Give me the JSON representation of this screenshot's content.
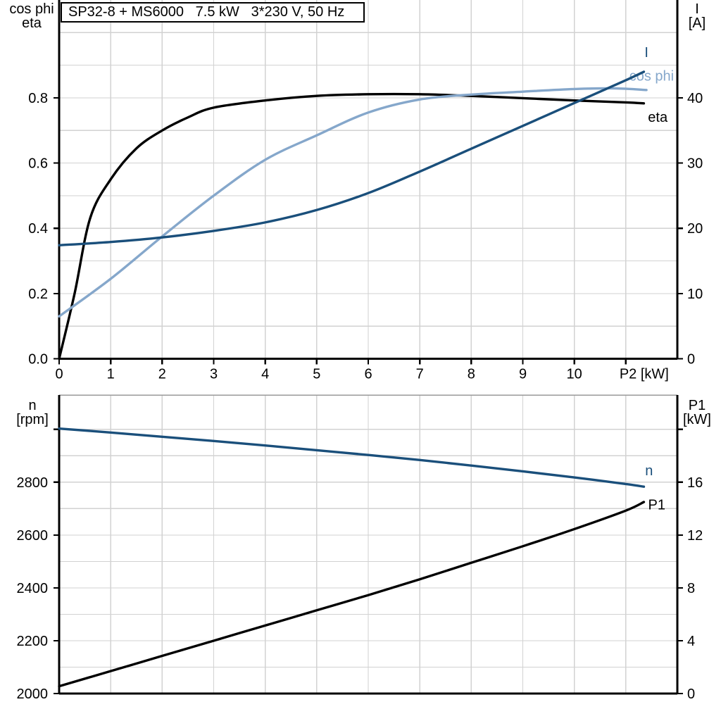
{
  "colors": {
    "black": "#000000",
    "dark_blue": "#1a4f7b",
    "light_blue": "#85a7cb",
    "grid": "#d2d2d2",
    "frame_gray": "#999999",
    "background": "#ffffff"
  },
  "chart_data": [
    {
      "type": "line",
      "name": "motor-electrical-curves",
      "title": "SP32-8 + MS6000   7.5 kW   3*230 V, 50 Hz",
      "x": {
        "label": "P2 [kW]",
        "min": 0,
        "max": 12,
        "ticks": [
          0,
          1,
          2,
          3,
          4,
          5,
          6,
          7,
          8,
          9,
          10
        ],
        "label_tick": 11
      },
      "y_left": {
        "title_lines": [
          "cos phi",
          "eta"
        ],
        "min": 0,
        "max": 1.1,
        "grid_step": 0.1,
        "grid_max": 1.0,
        "tick_values": [
          0,
          0.2,
          0.4,
          0.6,
          0.8
        ],
        "tick_labels": [
          "0.0",
          "0.2",
          "0.4",
          "0.6",
          "0.8"
        ]
      },
      "y_right": {
        "title_lines": [
          "I",
          "[A]"
        ],
        "min": 0,
        "max": 55,
        "tick_values": [
          0,
          10,
          20,
          30,
          40
        ],
        "tick_labels": [
          "0",
          "10",
          "20",
          "30",
          "40"
        ]
      },
      "series": [
        {
          "name": "eta",
          "label": "eta",
          "axis": "left",
          "color_key": "black",
          "label_at": [
            11.62,
            0.742
          ],
          "points": [
            [
              0,
              0
            ],
            [
              0.3,
              0.2
            ],
            [
              0.6,
              0.43
            ],
            [
              1,
              0.55
            ],
            [
              1.5,
              0.645
            ],
            [
              2,
              0.7
            ],
            [
              2.5,
              0.74
            ],
            [
              3,
              0.77
            ],
            [
              4,
              0.792
            ],
            [
              5,
              0.806
            ],
            [
              6,
              0.811
            ],
            [
              7,
              0.811
            ],
            [
              8,
              0.806
            ],
            [
              9,
              0.799
            ],
            [
              10,
              0.792
            ],
            [
              11,
              0.786
            ],
            [
              11.35,
              0.783
            ]
          ]
        },
        {
          "name": "cos_phi",
          "label": "cos phi",
          "axis": "left",
          "color_key": "light_blue",
          "label_at": [
            11.5,
            0.868
          ],
          "points": [
            [
              0,
              0.13
            ],
            [
              1,
              0.245
            ],
            [
              2,
              0.375
            ],
            [
              3,
              0.5
            ],
            [
              4,
              0.61
            ],
            [
              5,
              0.685
            ],
            [
              6,
              0.755
            ],
            [
              7,
              0.795
            ],
            [
              8,
              0.81
            ],
            [
              9,
              0.819
            ],
            [
              10,
              0.827
            ],
            [
              10.8,
              0.829
            ],
            [
              11.4,
              0.824
            ]
          ]
        },
        {
          "name": "I",
          "label": "I",
          "axis": "right",
          "color_key": "dark_blue",
          "label_at": [
            11.4,
            47
          ],
          "points": [
            [
              0,
              17.4
            ],
            [
              1,
              17.9
            ],
            [
              2,
              18.6
            ],
            [
              3,
              19.6
            ],
            [
              4,
              20.9
            ],
            [
              5,
              22.8
            ],
            [
              6,
              25.4
            ],
            [
              7,
              28.7
            ],
            [
              8,
              32.2
            ],
            [
              9,
              35.7
            ],
            [
              10,
              39.2
            ],
            [
              11,
              42.7
            ],
            [
              11.35,
              44
            ]
          ]
        }
      ]
    },
    {
      "type": "line",
      "name": "speed-input-power-curves",
      "x": {
        "label": "",
        "min": 0,
        "max": 12,
        "ticks": [],
        "label_tick": null
      },
      "y_left": {
        "title_lines": [
          "n",
          "[rpm]"
        ],
        "min": 2000,
        "max": 3130,
        "grid_step": 100,
        "grid_max": 3000,
        "tick_values": [
          2000,
          2200,
          2400,
          2600,
          2800
        ],
        "tick_labels": [
          "2000",
          "2200",
          "2400",
          "2600",
          "2800"
        ],
        "extra_tick_values": [
          3000
        ]
      },
      "y_right": {
        "title_lines": [
          "P1",
          "[kW]"
        ],
        "min": 0,
        "max": 22.6,
        "tick_values": [
          0,
          4,
          8,
          12,
          16
        ],
        "tick_labels": [
          "0",
          "4",
          "8",
          "12",
          "16"
        ],
        "extra_tick_values": [
          20
        ]
      },
      "series": [
        {
          "name": "n",
          "label": "n",
          "axis": "left",
          "color_key": "dark_blue",
          "label_at": [
            11.45,
            2845
          ],
          "points": [
            [
              0,
              3003
            ],
            [
              1,
              2988
            ],
            [
              2,
              2972
            ],
            [
              3,
              2956
            ],
            [
              4,
              2939
            ],
            [
              5,
              2921
            ],
            [
              6,
              2903
            ],
            [
              7,
              2884
            ],
            [
              8,
              2863
            ],
            [
              9,
              2841
            ],
            [
              10,
              2818
            ],
            [
              11,
              2793
            ],
            [
              11.35,
              2783
            ]
          ]
        },
        {
          "name": "P1",
          "label": "P1",
          "axis": "right",
          "color_key": "black",
          "label_at": [
            11.6,
            14.3
          ],
          "points": [
            [
              0,
              0.55
            ],
            [
              1,
              1.7
            ],
            [
              2,
              2.85
            ],
            [
              3,
              4
            ],
            [
              4,
              5.15
            ],
            [
              5,
              6.3
            ],
            [
              6,
              7.45
            ],
            [
              7,
              8.65
            ],
            [
              8,
              9.9
            ],
            [
              9,
              11.15
            ],
            [
              10,
              12.45
            ],
            [
              11,
              13.85
            ],
            [
              11.35,
              14.5
            ]
          ]
        }
      ]
    }
  ]
}
